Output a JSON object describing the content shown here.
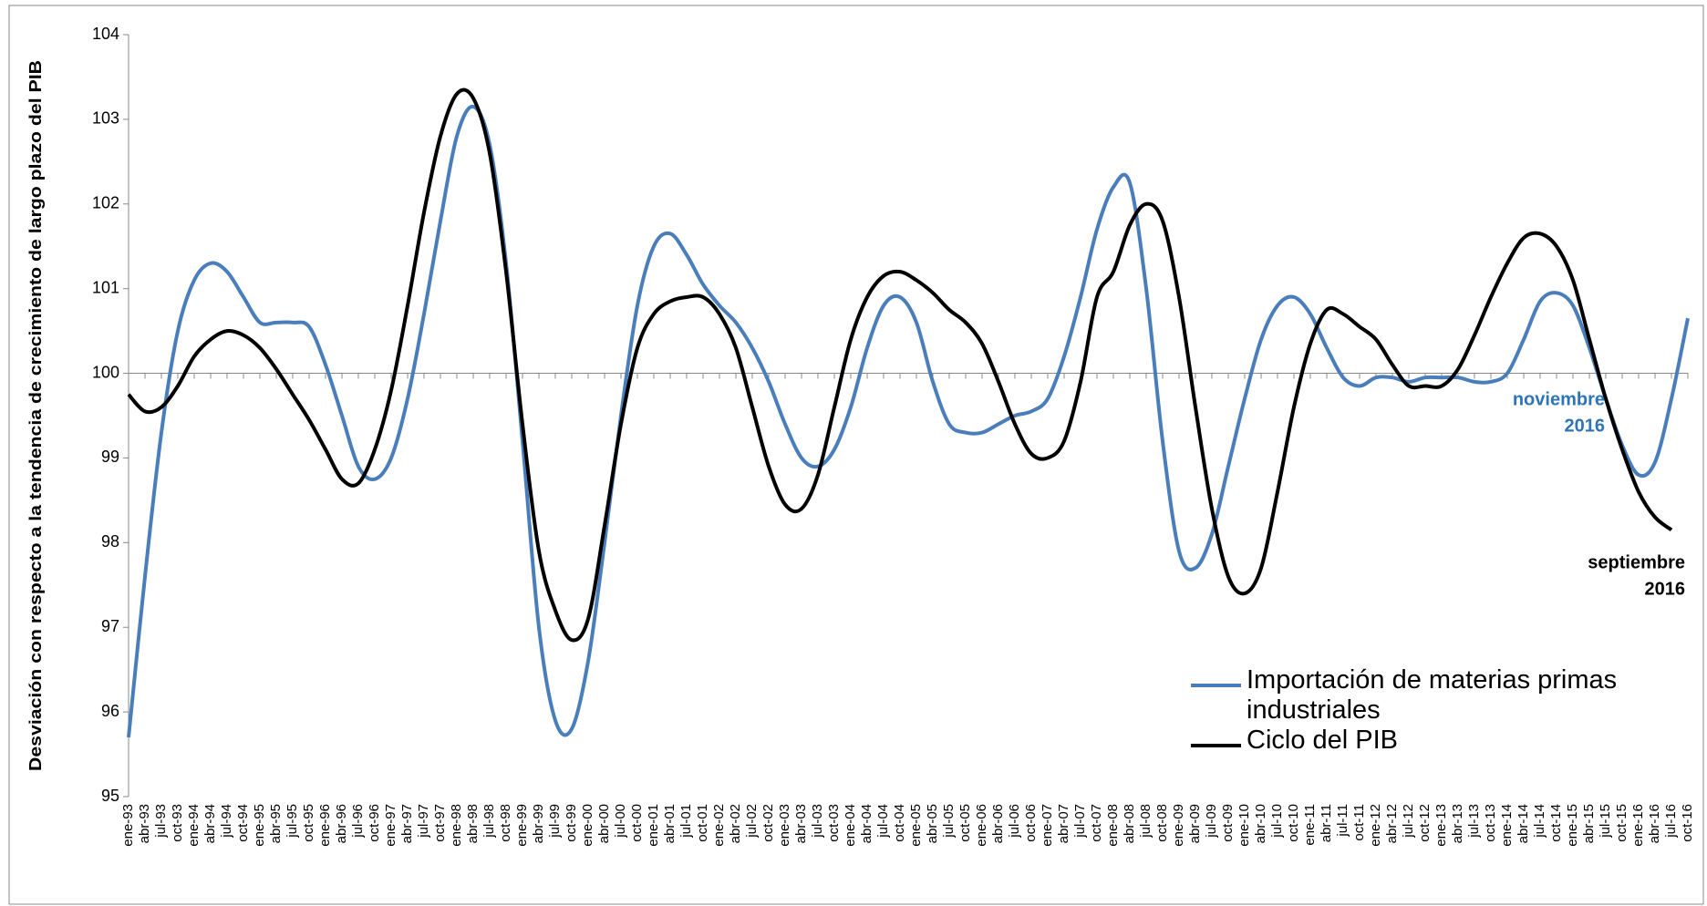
{
  "chart_data": {
    "type": "line",
    "y_label": "Desviación con respecto a la tendencia de crecimiento de largo plazo del PIB",
    "categories": [
      "ene-93",
      "abr-93",
      "jul-93",
      "oct-93",
      "ene-94",
      "abr-94",
      "jul-94",
      "oct-94",
      "ene-95",
      "abr-95",
      "jul-95",
      "oct-95",
      "ene-96",
      "abr-96",
      "jul-96",
      "oct-96",
      "ene-97",
      "abr-97",
      "jul-97",
      "oct-97",
      "ene-98",
      "abr-98",
      "jul-98",
      "oct-98",
      "ene-99",
      "abr-99",
      "jul-99",
      "oct-99",
      "ene-00",
      "abr-00",
      "jul-00",
      "oct-00",
      "ene-01",
      "abr-01",
      "jul-01",
      "oct-01",
      "ene-02",
      "abr-02",
      "jul-02",
      "oct-02",
      "ene-03",
      "abr-03",
      "jul-03",
      "oct-03",
      "ene-04",
      "abr-04",
      "jul-04",
      "oct-04",
      "ene-05",
      "abr-05",
      "jul-05",
      "oct-05",
      "ene-06",
      "abr-06",
      "jul-06",
      "oct-06",
      "ene-07",
      "abr-07",
      "jul-07",
      "oct-07",
      "ene-08",
      "abr-08",
      "jul-08",
      "oct-08",
      "ene-09",
      "abr-09",
      "jul-09",
      "oct-09",
      "ene-10",
      "abr-10",
      "jul-10",
      "oct-10",
      "ene-11",
      "abr-11",
      "jul-11",
      "oct-11",
      "ene-12",
      "abr-12",
      "jul-12",
      "oct-12",
      "ene-13",
      "abr-13",
      "jul-13",
      "oct-13",
      "ene-14",
      "abr-14",
      "jul-14",
      "oct-14",
      "ene-15",
      "abr-15",
      "jul-15",
      "oct-15",
      "ene-16",
      "abr-16",
      "jul-16",
      "oct-16"
    ],
    "series": [
      {
        "name": "Importación de materias primas industriales",
        "color": "#4a7ebb",
        "values": [
          95.7,
          97.6,
          99.3,
          100.5,
          101.1,
          101.3,
          101.2,
          100.9,
          100.6,
          100.6,
          100.6,
          100.55,
          100.1,
          99.5,
          98.9,
          98.75,
          99.0,
          99.7,
          100.7,
          101.8,
          102.8,
          103.15,
          102.7,
          101.3,
          99.2,
          97.0,
          95.9,
          95.8,
          96.6,
          98.0,
          99.5,
          100.8,
          101.5,
          101.65,
          101.4,
          101.05,
          100.8,
          100.6,
          100.3,
          99.9,
          99.4,
          99.0,
          98.9,
          99.1,
          99.6,
          100.3,
          100.8,
          100.9,
          100.6,
          99.9,
          99.4,
          99.3,
          99.3,
          99.4,
          99.5,
          99.55,
          99.7,
          100.2,
          100.9,
          101.7,
          102.2,
          102.25,
          101.0,
          99.2,
          97.9,
          97.7,
          98.1,
          98.9,
          99.7,
          100.4,
          100.8,
          100.9,
          100.7,
          100.3,
          99.95,
          99.85,
          99.95,
          99.95,
          99.9,
          99.95,
          99.95,
          99.95,
          99.9,
          99.9,
          100.0,
          100.4,
          100.85,
          100.95,
          100.8,
          100.3,
          99.7,
          99.15,
          98.8,
          98.95,
          99.7,
          100.65
        ]
      },
      {
        "name": "Ciclo del PIB",
        "color": "#000000",
        "values": [
          99.75,
          99.55,
          99.6,
          99.85,
          100.2,
          100.4,
          100.5,
          100.45,
          100.3,
          100.05,
          99.75,
          99.45,
          99.1,
          98.75,
          98.7,
          99.1,
          99.8,
          100.8,
          101.9,
          102.8,
          103.3,
          103.25,
          102.6,
          101.2,
          99.4,
          97.9,
          97.2,
          96.85,
          97.1,
          98.2,
          99.4,
          100.3,
          100.7,
          100.85,
          100.9,
          100.9,
          100.7,
          100.3,
          99.6,
          98.9,
          98.45,
          98.4,
          98.8,
          99.6,
          100.4,
          100.9,
          101.15,
          101.2,
          101.1,
          100.95,
          100.75,
          100.6,
          100.35,
          99.9,
          99.4,
          99.05,
          99.0,
          99.2,
          99.9,
          100.9,
          101.2,
          101.75,
          102.0,
          101.8,
          100.9,
          99.6,
          98.4,
          97.6,
          97.4,
          97.7,
          98.6,
          99.6,
          100.35,
          100.75,
          100.7,
          100.55,
          100.4,
          100.1,
          99.85,
          99.85,
          99.85,
          100.05,
          100.45,
          100.9,
          101.3,
          101.6,
          101.65,
          101.5,
          101.1,
          100.4,
          99.7,
          99.1,
          98.6,
          98.3,
          98.15,
          null
        ]
      }
    ],
    "ylim": [
      95,
      104
    ],
    "yticks": [
      95,
      96,
      97,
      98,
      99,
      100,
      101,
      102,
      103,
      104
    ],
    "xaxis_crosses": 100,
    "annotations": [
      {
        "text": [
          "noviembre",
          "2016"
        ],
        "color": "#2e75b6"
      },
      {
        "text": [
          "septiembre",
          "2016"
        ],
        "color": "#000000"
      }
    ],
    "legend": "lower right"
  }
}
